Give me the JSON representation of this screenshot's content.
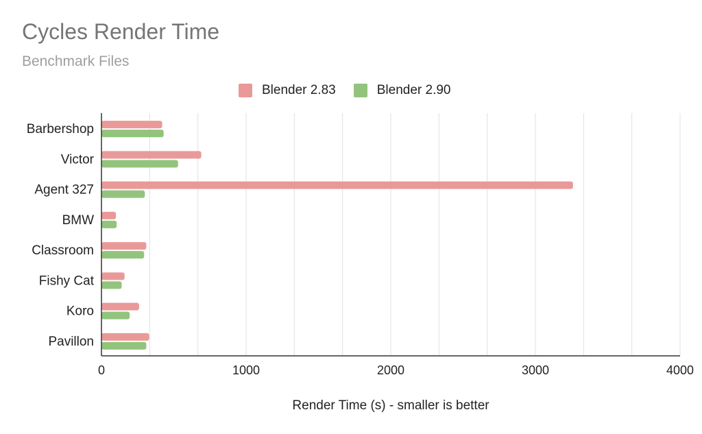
{
  "chart_data": {
    "type": "bar",
    "orientation": "horizontal",
    "title": "Cycles Render Time",
    "subtitle": "Benchmark Files",
    "xlabel": "Render Time (s) - smaller is better",
    "ylabel": "",
    "xlim": [
      0,
      4000
    ],
    "xticks": [
      0,
      1000,
      2000,
      3000,
      4000
    ],
    "grid": true,
    "legend_position": "top",
    "categories": [
      "Barbershop",
      "Victor",
      "Agent 327",
      "BMW",
      "Classroom",
      "Fishy Cat",
      "Koro",
      "Pavillon"
    ],
    "series": [
      {
        "name": "Blender 2.83",
        "color": "#ea9999",
        "values": [
          420,
          690,
          3260,
          100,
          310,
          160,
          260,
          330
        ]
      },
      {
        "name": "Blender 2.90",
        "color": "#93c47d",
        "values": [
          430,
          530,
          300,
          105,
          295,
          140,
          195,
          310
        ]
      }
    ]
  }
}
